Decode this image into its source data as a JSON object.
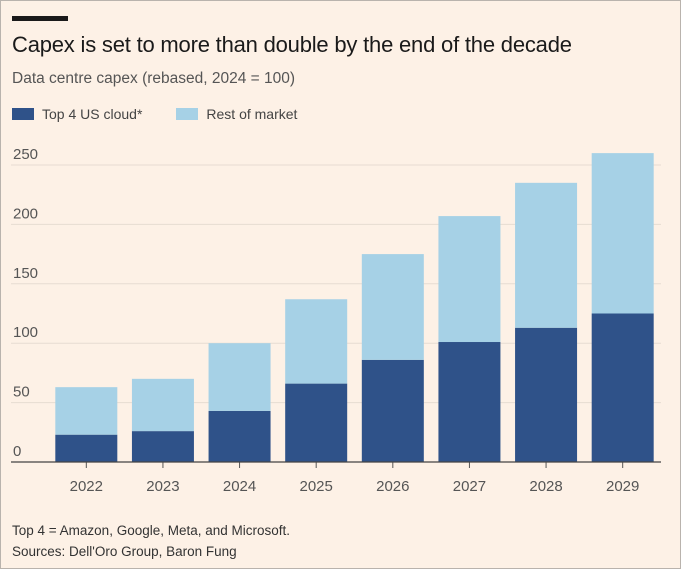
{
  "header": {
    "title": "Capex is set to more than double by the end of the decade",
    "subtitle": "Data centre capex (rebased, 2024 = 100)"
  },
  "legend": {
    "items": [
      {
        "label": "Top 4 US cloud*",
        "color": "#2f5289"
      },
      {
        "label": "Rest of market",
        "color": "#a6d1e6"
      }
    ]
  },
  "footer": {
    "note": "Top 4 = Amazon, Google, Meta, and Microsoft.",
    "sources": "Sources: Dell'Oro Group, Baron Fung"
  },
  "colors": {
    "background": "#fdf1e6",
    "grid": "#e6dcd2",
    "axis_text": "#555555"
  },
  "chart_data": {
    "type": "bar",
    "stacked": true,
    "categories": [
      "2022",
      "2023",
      "2024",
      "2025",
      "2026",
      "2027",
      "2028",
      "2029"
    ],
    "series": [
      {
        "name": "Top 4 US cloud*",
        "color": "#2f5289",
        "values": [
          23,
          26,
          43,
          66,
          86,
          101,
          113,
          125
        ]
      },
      {
        "name": "Rest of market",
        "color": "#a6d1e6",
        "values": [
          40,
          44,
          57,
          71,
          89,
          106,
          122,
          135
        ]
      }
    ],
    "ylim": [
      0,
      260
    ],
    "yticks": [
      0,
      50,
      100,
      150,
      200,
      250
    ],
    "grid": true,
    "legend_position": "top-left",
    "xlabel": "",
    "ylabel": ""
  }
}
